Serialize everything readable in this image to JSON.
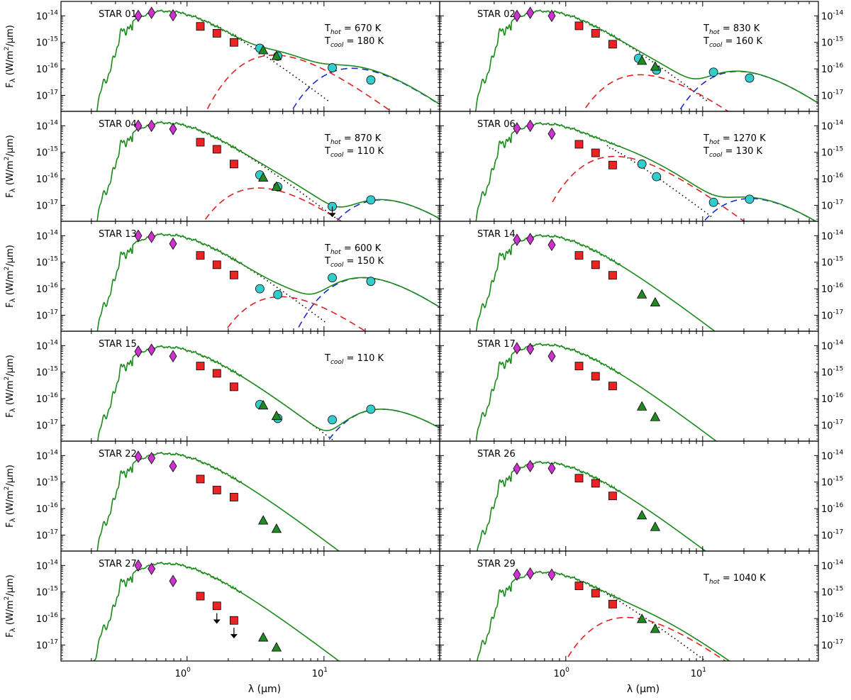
{
  "chart_data": {
    "type": "scatter",
    "description_units": {
      "x": "micron",
      "y": "W/m^2/micron"
    },
    "xscale": "log",
    "yscale": "log",
    "xlim": [
      0.12,
      70
    ],
    "ylim": [
      2.5e-18,
      3.5e-14
    ],
    "xlabel_prefix": "λ (",
    "xlabel_unit": "μm",
    "xlabel_suffix": ")",
    "ylabel_sym": "F",
    "ylabel_sub": "λ",
    "ylabel_units": "(W/m",
    "ylabel_units_sup": "2",
    "ylabel_units_end": "/μm)",
    "x_ticks": [
      {
        "value": 1,
        "base": "10",
        "exp": "0"
      },
      {
        "value": 10,
        "base": "10",
        "exp": "1"
      }
    ],
    "y_ticks": [
      {
        "value": 1e-14,
        "base": "10",
        "exp": "-14"
      },
      {
        "value": 1e-15,
        "base": "10",
        "exp": "-15"
      },
      {
        "value": 1e-16,
        "base": "10",
        "exp": "-16"
      },
      {
        "value": 1e-17,
        "base": "10",
        "exp": "-17"
      }
    ],
    "legend": [
      {
        "marker": "diamond",
        "color": "#cc33cc",
        "label": ""
      },
      {
        "marker": "square",
        "color": "#ee2222",
        "label": ""
      },
      {
        "marker": "triangle",
        "color": "#228822",
        "label": ""
      },
      {
        "marker": "circle",
        "color": "#33cccc",
        "label": ""
      }
    ],
    "panels": [
      {
        "name": "STAR 01",
        "Thot": "670 K",
        "Tcool": "180 K",
        "photosphere": {
          "peak": 1.5e-14,
          "tail_end": 9
        },
        "hot": {
          "T": 670,
          "peak": 3.3e-16
        },
        "cool": {
          "T": 180,
          "peak": 1.05e-16
        },
        "points": {
          "diamond": [
            [
              0.44,
              1e-14
            ],
            [
              0.55,
              1.3e-14
            ],
            [
              0.79,
              1.05e-14
            ]
          ],
          "square": [
            [
              1.25,
              4e-15
            ],
            [
              1.65,
              2.2e-15
            ],
            [
              2.2,
              1e-15
            ]
          ],
          "triangle": [
            [
              3.6,
              5e-16
            ],
            [
              4.5,
              3e-16
            ]
          ],
          "circle": [
            [
              3.4,
              6e-16
            ],
            [
              4.6,
              3e-16
            ],
            [
              11.5,
              1.1e-16
            ],
            [
              22,
              3.8e-17
            ]
          ],
          "upper": []
        }
      },
      {
        "name": "STAR 02",
        "Thot": "830 K",
        "Tcool": "160 K",
        "photosphere": {
          "peak": 1.5e-14,
          "tail_end": 9
        },
        "hot": {
          "T": 830,
          "peak": 6e-17
        },
        "cool": {
          "T": 160,
          "peak": 8e-17
        },
        "points": {
          "diamond": [
            [
              0.44,
              1e-14
            ],
            [
              0.55,
              1.3e-14
            ],
            [
              0.79,
              1e-14
            ]
          ],
          "square": [
            [
              1.25,
              4.2e-15
            ],
            [
              1.65,
              2.2e-15
            ],
            [
              2.2,
              8.5e-16
            ]
          ],
          "triangle": [
            [
              3.6,
              2e-16
            ],
            [
              4.5,
              1.2e-16
            ]
          ],
          "circle": [
            [
              3.4,
              2.5e-16
            ],
            [
              4.6,
              9e-17
            ],
            [
              12,
              7.5e-17
            ],
            [
              22,
              4.5e-17
            ]
          ],
          "upper": []
        }
      },
      {
        "name": "STAR 04",
        "Thot": "870 K",
        "Tcool": "110 K",
        "photosphere": {
          "peak": 1.3e-14,
          "tail_end": 11
        },
        "hot": {
          "T": 870,
          "peak": 4.5e-17
        },
        "cool": {
          "T": 110,
          "peak": 1.6e-17
        },
        "points": {
          "diamond": [
            [
              0.44,
              1e-14
            ],
            [
              0.55,
              1e-14
            ],
            [
              0.79,
              7.5e-15
            ]
          ],
          "square": [
            [
              1.25,
              2.4e-15
            ],
            [
              1.65,
              1.3e-15
            ],
            [
              2.2,
              3.6e-16
            ]
          ],
          "triangle": [
            [
              3.6,
              1.1e-16
            ],
            [
              4.5,
              5e-17
            ]
          ],
          "circle": [
            [
              3.4,
              1.4e-16
            ],
            [
              4.6,
              5e-17
            ],
            [
              11.5,
              9e-18
            ],
            [
              22,
              1.6e-17
            ]
          ],
          "upper": [
            [
              11.5,
              9e-18
            ]
          ]
        }
      },
      {
        "name": "STAR 06",
        "Thot": "1270 K",
        "Tcool": "130 K",
        "photosphere": {
          "peak": 1.2e-14,
          "tail_end": 10
        },
        "hot": {
          "T": 1270,
          "peak": 7e-16
        },
        "cool": {
          "T": 130,
          "peak": 1.8e-17
        },
        "points": {
          "diamond": [
            [
              0.44,
              8e-15
            ],
            [
              0.55,
              1e-14
            ],
            [
              0.79,
              5e-15
            ]
          ],
          "square": [
            [
              1.25,
              2e-15
            ],
            [
              1.65,
              9.5e-16
            ],
            [
              2.2,
              3.3e-16
            ]
          ],
          "triangle": [],
          "circle": [
            [
              3.6,
              3.6e-16
            ],
            [
              4.6,
              1.2e-16
            ],
            [
              12,
              1.3e-17
            ],
            [
              22,
              1.7e-17
            ]
          ],
          "upper": []
        }
      },
      {
        "name": "STAR 13",
        "Thot": "600 K",
        "Tcool": "150 K",
        "photosphere": {
          "peak": 1.1e-14,
          "tail_end": 8.5
        },
        "hot": {
          "T": 600,
          "peak": 5e-17
        },
        "cool": {
          "T": 150,
          "peak": 2.6e-16
        },
        "points": {
          "diamond": [
            [
              0.44,
              1e-14
            ],
            [
              0.55,
              9e-15
            ],
            [
              0.79,
              5e-15
            ]
          ],
          "square": [
            [
              1.25,
              1.8e-15
            ],
            [
              1.65,
              8e-16
            ],
            [
              2.2,
              3.3e-16
            ]
          ],
          "triangle": [],
          "circle": [
            [
              3.4,
              1e-16
            ],
            [
              4.6,
              6e-17
            ],
            [
              11.5,
              2.6e-16
            ],
            [
              22,
              1.9e-16
            ]
          ],
          "upper": []
        }
      },
      {
        "name": "STAR 14",
        "Thot": "",
        "Tcool": "",
        "photosphere": {
          "peak": 1e-14,
          "tail_end": 10
        },
        "hot": null,
        "cool": null,
        "points": {
          "diamond": [
            [
              0.44,
              7e-15
            ],
            [
              0.55,
              7.5e-15
            ],
            [
              0.79,
              4.5e-15
            ]
          ],
          "square": [
            [
              1.25,
              1.8e-15
            ],
            [
              1.65,
              8e-16
            ],
            [
              2.2,
              3.2e-16
            ]
          ],
          "triangle": [
            [
              3.6,
              6e-17
            ],
            [
              4.5,
              3e-17
            ]
          ],
          "circle": [],
          "upper": []
        }
      },
      {
        "name": "STAR 15",
        "Thot": "",
        "Tcool": "110 K",
        "photosphere": {
          "peak": 9e-15,
          "tail_end": 10
        },
        "hot": null,
        "cool": {
          "T": 110,
          "peak": 4e-17
        },
        "points": {
          "diamond": [
            [
              0.44,
              6e-15
            ],
            [
              0.55,
              7e-15
            ],
            [
              0.79,
              4e-15
            ]
          ],
          "square": [
            [
              1.25,
              1.7e-15
            ],
            [
              1.65,
              9e-16
            ],
            [
              2.2,
              2.8e-16
            ]
          ],
          "triangle": [
            [
              3.6,
              5.5e-17
            ],
            [
              4.5,
              2.2e-17
            ]
          ],
          "circle": [
            [
              3.4,
              6e-17
            ],
            [
              4.6,
              1.8e-17
            ],
            [
              11.5,
              1.6e-17
            ],
            [
              22,
              4e-17
            ]
          ],
          "upper": []
        }
      },
      {
        "name": "STAR 17",
        "Thot": "",
        "Tcool": "",
        "photosphere": {
          "peak": 1.1e-14,
          "tail_end": 10
        },
        "hot": null,
        "cool": null,
        "points": {
          "diamond": [
            [
              0.44,
              8e-15
            ],
            [
              0.55,
              7.5e-15
            ],
            [
              0.79,
              4e-15
            ]
          ],
          "square": [
            [
              1.25,
              1.7e-15
            ],
            [
              1.65,
              7e-16
            ],
            [
              2.2,
              3e-16
            ]
          ],
          "triangle": [
            [
              3.6,
              5e-17
            ],
            [
              4.5,
              2e-17
            ]
          ],
          "circle": [],
          "upper": []
        }
      },
      {
        "name": "STAR 22",
        "Thot": "",
        "Tcool": "",
        "photosphere": {
          "peak": 1.2e-14,
          "tail_end": 8
        },
        "hot": null,
        "cool": null,
        "points": {
          "diamond": [
            [
              0.44,
              9e-15
            ],
            [
              0.55,
              8e-15
            ],
            [
              0.79,
              4e-15
            ]
          ],
          "square": [
            [
              1.25,
              1.3e-15
            ],
            [
              1.65,
              5e-16
            ],
            [
              2.2,
              2.7e-16
            ]
          ],
          "triangle": [
            [
              3.6,
              3.5e-17
            ],
            [
              4.5,
              1.7e-17
            ]
          ],
          "circle": [],
          "upper": []
        }
      },
      {
        "name": "STAR 26",
        "Thot": "",
        "Tcool": "",
        "photosphere": {
          "peak": 5.5e-15,
          "tail_end": 10
        },
        "hot": null,
        "cool": null,
        "points": {
          "diamond": [
            [
              0.44,
              3.2e-15
            ],
            [
              0.55,
              4e-15
            ],
            [
              0.79,
              3.3e-15
            ]
          ],
          "square": [
            [
              1.25,
              1.4e-15
            ],
            [
              1.65,
              9e-16
            ],
            [
              2.2,
              3e-16
            ]
          ],
          "triangle": [
            [
              3.6,
              5.5e-17
            ],
            [
              4.5,
              2e-17
            ]
          ],
          "circle": [],
          "upper": []
        }
      },
      {
        "name": "STAR 27",
        "Thot": "",
        "Tcool": "",
        "photosphere": {
          "peak": 1.2e-14,
          "tail_end": 7,
          "cutoff": 0.13
        },
        "hot": null,
        "cool": null,
        "points": {
          "diamond": [
            [
              0.44,
              1e-14
            ],
            [
              0.55,
              7.5e-15
            ],
            [
              0.79,
              2.6e-15
            ]
          ],
          "square": [
            [
              1.25,
              7e-16
            ],
            [
              1.65,
              3e-16
            ],
            [
              2.2,
              8.5e-17
            ]
          ],
          "triangle": [
            [
              3.6,
              1.9e-17
            ],
            [
              4.5,
              8e-18
            ]
          ],
          "circle": [],
          "upper": [
            [
              1.65,
              1.6e-16
            ],
            [
              2.2,
              4.5e-17
            ]
          ]
        }
      },
      {
        "name": "STAR 29",
        "Thot": "1040 K",
        "Tcool": "",
        "photosphere": {
          "peak": 5.5e-15,
          "tail_end": 9
        },
        "hot": {
          "T": 1040,
          "peak": 1.1e-16
        },
        "cool": null,
        "points": {
          "diamond": [
            [
              0.44,
              4.5e-15
            ],
            [
              0.55,
              5e-15
            ],
            [
              0.79,
              4.5e-15
            ]
          ],
          "square": [
            [
              1.25,
              1.7e-15
            ],
            [
              1.65,
              9e-16
            ],
            [
              2.2,
              3.5e-16
            ]
          ],
          "triangle": [
            [
              3.6,
              9.5e-17
            ],
            [
              4.5,
              4e-17
            ]
          ],
          "circle": [],
          "upper": []
        }
      }
    ],
    "label_thot_main": "T",
    "label_thot_sub": "hot",
    "label_tcool_main": "T",
    "label_tcool_sub": "cool",
    "label_eq": " = ",
    "colors": {
      "model": "#1a8a1a",
      "hot": "#e02020",
      "cool": "#1a2ad0",
      "photo_tail": "#000000",
      "diamond": "#cc33cc",
      "square": "#ee2222",
      "triangle": "#228822",
      "circle": "#33cccc"
    }
  }
}
